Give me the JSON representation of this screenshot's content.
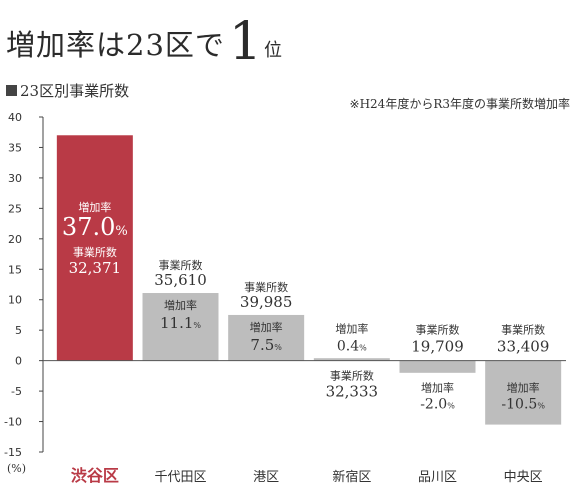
{
  "headline": {
    "part1": "増加率は23区で",
    "rank": "1",
    "part2": "位"
  },
  "subtitle": "23区別事業所数",
  "note": "※H24年度からR3年度の事業所数増加率",
  "unit_label": "(%)",
  "labels": {
    "rate": "増加率",
    "count": "事業所数"
  },
  "colors": {
    "highlight": "#b93a46",
    "bar": "#bdbdbd",
    "highlight_text": "#b93a46"
  },
  "chart_data": {
    "type": "bar",
    "title": "23区別事業所数",
    "categories": [
      "渋谷区",
      "千代田区",
      "港区",
      "新宿区",
      "品川区",
      "中央区"
    ],
    "series": [
      {
        "name": "増加率",
        "values": [
          37.0,
          11.1,
          7.5,
          0.4,
          -2.0,
          -10.5
        ]
      }
    ],
    "rate_labels": [
      "37.0",
      "11.1",
      "7.5",
      "0.4",
      "-2.0",
      "-10.5"
    ],
    "counts": [
      "32,371",
      "35,610",
      "39,985",
      "32,333",
      "19,709",
      "33,409"
    ],
    "highlight_index": 0,
    "ylim": [
      -15,
      40
    ],
    "yticks": [
      40,
      35,
      30,
      25,
      20,
      15,
      10,
      5,
      0,
      -5,
      -10,
      -15
    ],
    "ytick_labels": [
      "40",
      "35",
      "30",
      "25",
      "20",
      "15",
      "10",
      "5",
      "0",
      "-5",
      "-10",
      "-15"
    ],
    "ylabel": "(%)",
    "grid": false
  }
}
